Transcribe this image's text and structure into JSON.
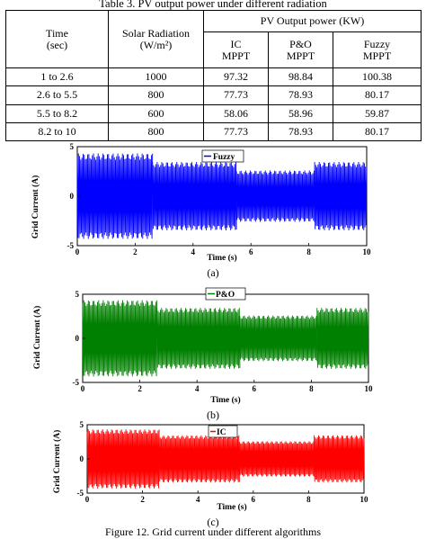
{
  "table": {
    "caption": "Table 3. PV output power under different radiation",
    "header": {
      "time_line1": "Time",
      "time_line2": "(sec)",
      "rad_line1": "Solar Radiation",
      "rad_line2": "(W/m²)",
      "group": "PV Output power (KW)",
      "ic_line1": "IC",
      "ic_line2": "MPPT",
      "po_line1": "P&O",
      "po_line2": "MPPT",
      "fz_line1": "Fuzzy",
      "fz_line2": "MPPT"
    },
    "rows": [
      {
        "time": "1 to 2.6",
        "rad": "1000",
        "ic": "97.32",
        "po": "98.84",
        "fz": "100.38"
      },
      {
        "time": "2.6 to 5.5",
        "rad": "800",
        "ic": "77.73",
        "po": "78.93",
        "fz": "80.17"
      },
      {
        "time": "5.5 to 8.2",
        "rad": "600",
        "ic": "58.06",
        "po": "58.96",
        "fz": "59.87"
      },
      {
        "time": "8.2 to 10",
        "rad": "800",
        "ic": "77.73",
        "po": "78.93",
        "fz": "80.17"
      }
    ]
  },
  "figures": [
    {
      "sublabel": "(a)",
      "ylabel": "Grid Current (A)",
      "xlabel": "Time (s)",
      "legend": "Fuzzy",
      "color": "#0000ff",
      "xticks": [
        "0",
        "2",
        "4",
        "6",
        "8",
        "10"
      ],
      "yticks": [
        "5",
        "0",
        "-5"
      ]
    },
    {
      "sublabel": "(b)",
      "ylabel": "Grid Current (A)",
      "xlabel": "Time (s)",
      "legend": "P&O",
      "color": "#008000",
      "xticks": [
        "0",
        "2",
        "4",
        "6",
        "8",
        "10"
      ],
      "yticks": [
        "5",
        "0",
        "-5"
      ]
    },
    {
      "sublabel": "(c)",
      "ylabel": "Grid Current (A)",
      "xlabel": "Time (s)",
      "legend": "IC",
      "color": "#ff0000",
      "xticks": [
        "0",
        "2",
        "4",
        "6",
        "8",
        "10"
      ],
      "yticks": [
        "5",
        "0",
        "-5"
      ]
    }
  ],
  "figure_caption": "Figure 12. Grid current under different algorithms",
  "chart_data": [
    {
      "type": "line",
      "title": "",
      "xlabel": "Time (s)",
      "ylabel": "Grid Current (A)",
      "xlim": [
        0,
        10
      ],
      "ylim": [
        -5,
        5
      ],
      "series": [
        {
          "name": "Fuzzy",
          "segments": [
            {
              "t_start": 0,
              "t_end": 2.6,
              "amplitude": 4.0
            },
            {
              "t_start": 2.6,
              "t_end": 5.5,
              "amplitude": 3.2
            },
            {
              "t_start": 5.5,
              "t_end": 8.2,
              "amplitude": 2.4
            },
            {
              "t_start": 8.2,
              "t_end": 10,
              "amplitude": 3.2
            }
          ]
        }
      ]
    },
    {
      "type": "line",
      "title": "",
      "xlabel": "Time (s)",
      "ylabel": "Grid Current (A)",
      "xlim": [
        0,
        10
      ],
      "ylim": [
        -5,
        5
      ],
      "series": [
        {
          "name": "P&O",
          "segments": [
            {
              "t_start": 0,
              "t_end": 2.6,
              "amplitude": 4.0
            },
            {
              "t_start": 2.6,
              "t_end": 5.5,
              "amplitude": 3.2
            },
            {
              "t_start": 5.5,
              "t_end": 8.2,
              "amplitude": 2.4
            },
            {
              "t_start": 8.2,
              "t_end": 10,
              "amplitude": 3.2
            }
          ]
        }
      ]
    },
    {
      "type": "line",
      "title": "",
      "xlabel": "Time (s)",
      "ylabel": "Grid Current (A)",
      "xlim": [
        0,
        10
      ],
      "ylim": [
        -5,
        5
      ],
      "series": [
        {
          "name": "IC",
          "segments": [
            {
              "t_start": 0,
              "t_end": 2.6,
              "amplitude": 4.0
            },
            {
              "t_start": 2.6,
              "t_end": 5.5,
              "amplitude": 3.2
            },
            {
              "t_start": 5.5,
              "t_end": 8.2,
              "amplitude": 2.4
            },
            {
              "t_start": 8.2,
              "t_end": 10,
              "amplitude": 3.2
            }
          ]
        }
      ]
    }
  ]
}
